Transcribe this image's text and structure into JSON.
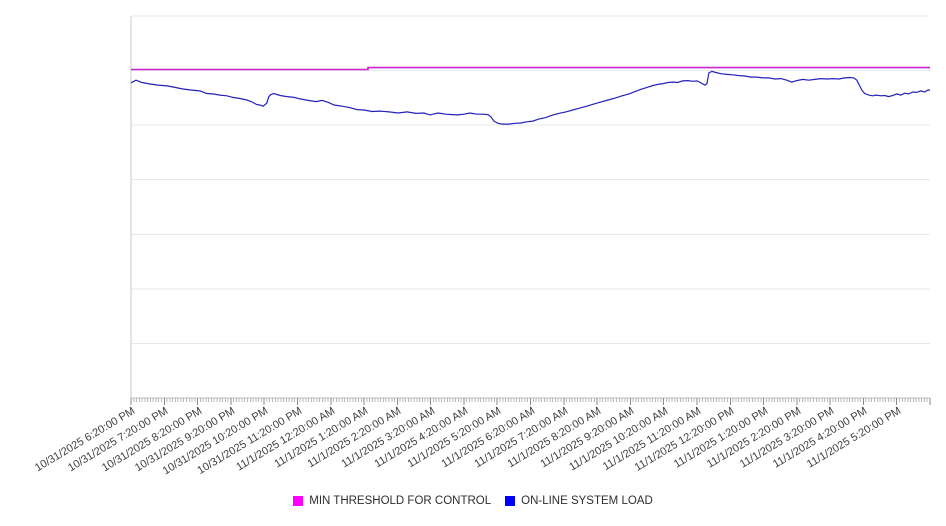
{
  "page": {
    "background": "#ffffff"
  },
  "chart_data": {
    "type": "line",
    "title": "",
    "xlabel": "",
    "ylabel": "",
    "grid": true,
    "legend_position": "bottom",
    "x_axis": {
      "labels": [
        "10/31/2025 6:20:00 PM",
        "10/31/2025 7:20:00 PM",
        "10/31/2025 8:20:00 PM",
        "10/31/2025 9:20:00 PM",
        "10/31/2025 10:20:00 PM",
        "10/31/2025 11:20:00 PM",
        "11/1/2025 12:20:00 AM",
        "11/1/2025 1:20:00 AM",
        "11/1/2025 2:20:00 AM",
        "11/1/2025 3:20:00 AM",
        "11/1/2025 4:20:00 AM",
        "11/1/2025 5:20:00 AM",
        "11/1/2025 6:20:00 AM",
        "11/1/2025 7:20:00 AM",
        "11/1/2025 8:20:00 AM",
        "11/1/2025 9:20:00 AM",
        "11/1/2025 10:20:00 AM",
        "11/1/2025 11:20:00 AM",
        "11/1/2025 12:20:00 PM",
        "11/1/2025 1:20:00 PM",
        "11/1/2025 2:20:00 PM",
        "11/1/2025 3:20:00 PM",
        "11/1/2025 4:20:00 PM",
        "11/1/2025 5:20:00 PM"
      ],
      "minor_ticks_per_label": 12
    },
    "y_axis": {
      "labels_visible": false,
      "ylim": [
        0,
        100
      ],
      "gridline_count": 7
    },
    "series": [
      {
        "name": "MIN THRESHOLD FOR CONTROL",
        "color": "#cc22cc",
        "width": 1.6,
        "points": [
          [
            0,
            86.0
          ],
          [
            7.12,
            86.0
          ],
          [
            7.12,
            86.5
          ],
          [
            24,
            86.5
          ]
        ]
      },
      {
        "name": "ON-LINE SYSTEM LOAD",
        "color": "#2222bb",
        "width": 1.2,
        "points": [
          [
            0,
            82.5
          ],
          [
            0.15,
            83.2
          ],
          [
            0.33,
            82.6
          ],
          [
            0.57,
            82.2
          ],
          [
            0.81,
            81.9
          ],
          [
            1.08,
            81.7
          ],
          [
            1.32,
            81.3
          ],
          [
            1.56,
            80.9
          ],
          [
            1.83,
            80.6
          ],
          [
            2.07,
            80.4
          ],
          [
            2.28,
            79.7
          ],
          [
            2.46,
            79.6
          ],
          [
            2.67,
            79.3
          ],
          [
            2.88,
            79.1
          ],
          [
            3.06,
            78.7
          ],
          [
            3.27,
            78.4
          ],
          [
            3.48,
            78.0
          ],
          [
            3.63,
            77.5
          ],
          [
            3.78,
            76.8
          ],
          [
            3.87,
            76.7
          ],
          [
            3.97,
            76.4
          ],
          [
            4.08,
            77.2
          ],
          [
            4.14,
            78.9
          ],
          [
            4.2,
            79.4
          ],
          [
            4.29,
            79.7
          ],
          [
            4.48,
            79.2
          ],
          [
            4.69,
            78.9
          ],
          [
            4.9,
            78.7
          ],
          [
            5.08,
            78.3
          ],
          [
            5.32,
            77.9
          ],
          [
            5.56,
            77.6
          ],
          [
            5.74,
            77.9
          ],
          [
            5.92,
            77.4
          ],
          [
            6.1,
            76.7
          ],
          [
            6.34,
            76.4
          ],
          [
            6.58,
            76.0
          ],
          [
            6.79,
            75.5
          ],
          [
            7.0,
            75.4
          ],
          [
            7.24,
            75.0
          ],
          [
            7.48,
            75.1
          ],
          [
            7.75,
            74.9
          ],
          [
            8.02,
            74.6
          ],
          [
            8.29,
            74.9
          ],
          [
            8.56,
            74.5
          ],
          [
            8.8,
            74.6
          ],
          [
            8.98,
            74.1
          ],
          [
            9.22,
            74.6
          ],
          [
            9.46,
            74.3
          ],
          [
            9.64,
            74.2
          ],
          [
            9.82,
            74.1
          ],
          [
            10.0,
            74.3
          ],
          [
            10.18,
            74.6
          ],
          [
            10.39,
            74.3
          ],
          [
            10.57,
            74.3
          ],
          [
            10.72,
            74.2
          ],
          [
            10.81,
            73.6
          ],
          [
            10.9,
            72.5
          ],
          [
            11.02,
            71.9
          ],
          [
            11.17,
            71.7
          ],
          [
            11.35,
            71.7
          ],
          [
            11.53,
            71.9
          ],
          [
            11.71,
            72.0
          ],
          [
            11.89,
            72.3
          ],
          [
            12.07,
            72.5
          ],
          [
            12.25,
            73.0
          ],
          [
            12.46,
            73.4
          ],
          [
            12.64,
            74.0
          ],
          [
            12.85,
            74.5
          ],
          [
            13.06,
            74.9
          ],
          [
            13.27,
            75.4
          ],
          [
            13.48,
            75.9
          ],
          [
            13.69,
            76.4
          ],
          [
            13.91,
            77.0
          ],
          [
            14.12,
            77.5
          ],
          [
            14.33,
            78.0
          ],
          [
            14.54,
            78.5
          ],
          [
            14.75,
            79.1
          ],
          [
            14.96,
            79.6
          ],
          [
            15.14,
            80.2
          ],
          [
            15.32,
            80.8
          ],
          [
            15.5,
            81.3
          ],
          [
            15.68,
            81.8
          ],
          [
            15.83,
            82.1
          ],
          [
            15.98,
            82.3
          ],
          [
            16.13,
            82.6
          ],
          [
            16.27,
            82.7
          ],
          [
            16.42,
            82.6
          ],
          [
            16.57,
            83.0
          ],
          [
            16.73,
            83.1
          ],
          [
            16.88,
            82.9
          ],
          [
            17.0,
            83.0
          ],
          [
            17.12,
            82.5
          ],
          [
            17.24,
            81.9
          ],
          [
            17.3,
            82.3
          ],
          [
            17.36,
            85.1
          ],
          [
            17.45,
            85.5
          ],
          [
            17.57,
            85.2
          ],
          [
            17.72,
            84.9
          ],
          [
            17.9,
            84.7
          ],
          [
            18.08,
            84.6
          ],
          [
            18.26,
            84.4
          ],
          [
            18.44,
            84.3
          ],
          [
            18.62,
            84.0
          ],
          [
            18.8,
            84.0
          ],
          [
            18.98,
            83.8
          ],
          [
            19.16,
            83.8
          ],
          [
            19.34,
            83.5
          ],
          [
            19.52,
            83.6
          ],
          [
            19.7,
            83.2
          ],
          [
            19.85,
            82.7
          ],
          [
            20.0,
            83.1
          ],
          [
            20.18,
            83.4
          ],
          [
            20.36,
            83.2
          ],
          [
            20.54,
            83.4
          ],
          [
            20.72,
            83.6
          ],
          [
            20.9,
            83.5
          ],
          [
            21.08,
            83.6
          ],
          [
            21.26,
            83.5
          ],
          [
            21.44,
            83.8
          ],
          [
            21.59,
            83.9
          ],
          [
            21.71,
            83.8
          ],
          [
            21.8,
            83.2
          ],
          [
            21.86,
            82.2
          ],
          [
            21.95,
            80.6
          ],
          [
            22.04,
            79.7
          ],
          [
            22.16,
            79.3
          ],
          [
            22.28,
            79.1
          ],
          [
            22.4,
            79.3
          ],
          [
            22.52,
            79.1
          ],
          [
            22.64,
            79.2
          ],
          [
            22.76,
            78.9
          ],
          [
            22.88,
            79.2
          ],
          [
            23.0,
            79.6
          ],
          [
            23.12,
            79.3
          ],
          [
            23.24,
            79.8
          ],
          [
            23.36,
            79.6
          ],
          [
            23.48,
            80.1
          ],
          [
            23.6,
            80.0
          ],
          [
            23.72,
            80.4
          ],
          [
            23.84,
            80.1
          ],
          [
            23.93,
            80.6
          ],
          [
            24.0,
            80.6
          ]
        ]
      }
    ]
  },
  "legend": {
    "items": [
      {
        "label": "MIN THRESHOLD FOR CONTROL",
        "color": "#ff00ff"
      },
      {
        "label": "ON-LINE SYSTEM LOAD",
        "color": "#0000ff"
      }
    ]
  }
}
